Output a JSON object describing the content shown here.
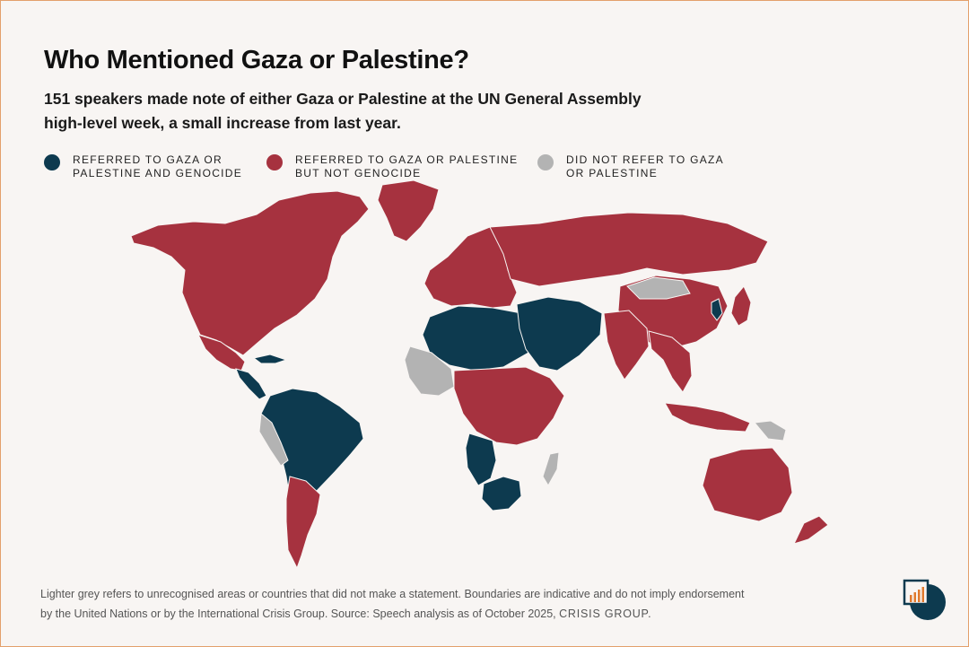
{
  "title": "Who Mentioned Gaza or Palestine?",
  "subtitle_lines": [
    "151 speakers made note of either Gaza or Palestine at the UN General Assembly",
    "high-level week, a small increase from last year."
  ],
  "legend": [
    {
      "lines": [
        "REFERRED TO GAZA OR",
        "PALESTINE AND GENOCIDE"
      ],
      "color": "#0d3a4f"
    },
    {
      "lines": [
        "REFERRED TO GAZA OR PALESTINE",
        "BUT NOT GENOCIDE"
      ],
      "color": "#a6323f"
    },
    {
      "lines": [
        "DID NOT REFER TO GAZA",
        "OR PALESTINE"
      ],
      "color": "#b3b3b3"
    }
  ],
  "colors": {
    "genocide": "#0d3a4f",
    "no_genocide": "#a6323f",
    "none": "#b3b3b3",
    "unrecognised": "#d8d6d4"
  },
  "footnote_lines": [
    "Lighter grey refers to unrecognised areas or countries that did not make a statement. Boundaries are indicative and do not imply endorsement",
    "by the United Nations or by the International Crisis Group. Source: Speech analysis as of October 2025,"
  ],
  "footnote_brand": "CRISIS GROUP.",
  "map_regions": [
    {
      "name": "North America",
      "category": "no_genocide"
    },
    {
      "name": "Greenland",
      "category": "no_genocide"
    },
    {
      "name": "Mexico",
      "category": "no_genocide"
    },
    {
      "name": "Central America",
      "category": "genocide"
    },
    {
      "name": "Cuba",
      "category": "genocide"
    },
    {
      "name": "South America",
      "category": "genocide"
    },
    {
      "name": "Ecuador and Peru",
      "category": "none"
    },
    {
      "name": "Argentina",
      "category": "no_genocide"
    },
    {
      "name": "Europe",
      "category": "no_genocide"
    },
    {
      "name": "Russia",
      "category": "no_genocide"
    },
    {
      "name": "China",
      "category": "no_genocide"
    },
    {
      "name": "Mongolia",
      "category": "none"
    },
    {
      "name": "North Africa",
      "category": "genocide"
    },
    {
      "name": "West Africa",
      "category": "none"
    },
    {
      "name": "Central Africa",
      "category": "no_genocide"
    },
    {
      "name": "Angola and Namibia",
      "category": "genocide"
    },
    {
      "name": "Southern Africa",
      "category": "genocide"
    },
    {
      "name": "Madagascar",
      "category": "none"
    },
    {
      "name": "Middle East",
      "category": "genocide"
    },
    {
      "name": "India",
      "category": "no_genocide"
    },
    {
      "name": "Southeast Asia",
      "category": "no_genocide"
    },
    {
      "name": "Indonesia",
      "category": "no_genocide"
    },
    {
      "name": "Papua New Guinea",
      "category": "none"
    },
    {
      "name": "Australia",
      "category": "no_genocide"
    },
    {
      "name": "New Zealand",
      "category": "no_genocide"
    },
    {
      "name": "Japan",
      "category": "no_genocide"
    },
    {
      "name": "Korean Peninsula",
      "category": "genocide"
    }
  ]
}
